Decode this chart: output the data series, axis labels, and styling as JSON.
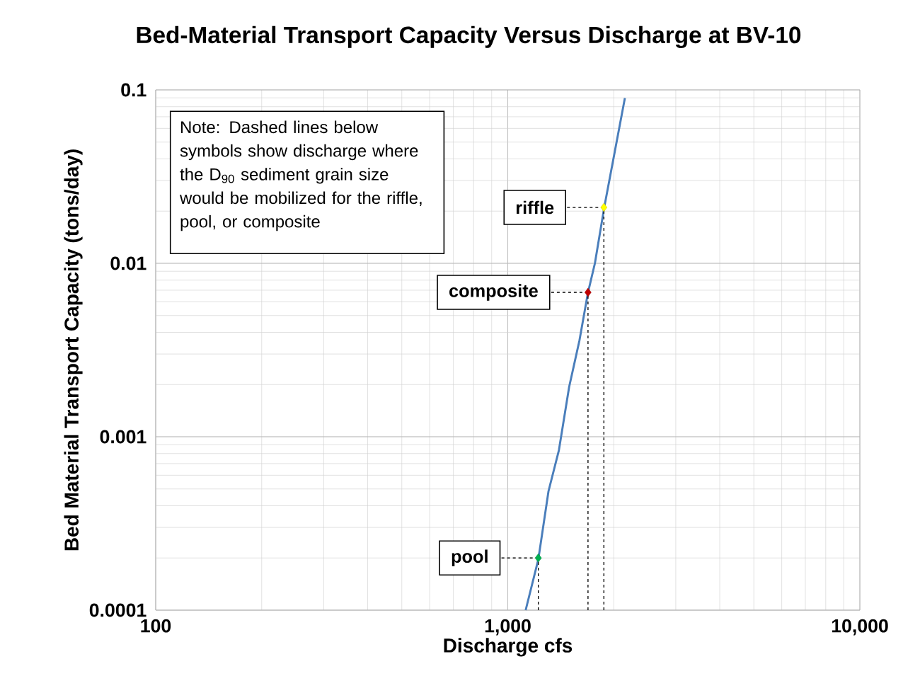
{
  "chart_data": {
    "type": "line",
    "title": "Bed-Material Transport Capacity Versus Discharge at BV-10",
    "xlabel": "Discharge cfs",
    "ylabel": "Bed Material Transport Capacity  (tons/day)",
    "log": "xy",
    "grid": true,
    "line_style": "solid",
    "marker": "none",
    "xlim": [
      100,
      10000
    ],
    "ylim": [
      0.0001,
      0.1
    ],
    "xticks": [
      100,
      {
        "value": 1000,
        "label": "1,000"
      },
      {
        "value": 10000,
        "label": "10,000"
      }
    ],
    "yticks": [
      0.0001,
      0.001,
      0.01,
      0.1
    ],
    "series": [
      {
        "color": "#4a7ebb",
        "x": [
          1124,
          1221,
          1305,
          1397,
          1494,
          1598,
          1690,
          1768,
          1881,
          2151
        ],
        "values": [
          0.0001,
          0.000196,
          0.000485,
          0.000836,
          0.00194,
          0.00359,
          0.0068,
          0.01,
          0.0212,
          0.0898
        ]
      },
      {
        "line_style": "dashed",
        "color": "#000000",
        "x": [
          1875,
          1875
        ],
        "values": [
          0.0001,
          0.021
        ]
      },
      {
        "line_style": "dashed",
        "color": "#000000",
        "x": [
          1690,
          1690
        ],
        "values": [
          0.0001,
          0.0068
        ]
      },
      {
        "line_style": "dashed",
        "color": "#000000",
        "x": [
          1221,
          1221
        ],
        "values": [
          0.0001,
          0.0002
        ]
      },
      {
        "type": "scatter",
        "marker": "diamond",
        "color": "#ffff00",
        "x": [
          1875
        ],
        "values": [
          0.021
        ]
      },
      {
        "type": "scatter",
        "marker": "diamond",
        "color": "#c00000",
        "x": [
          1690
        ],
        "values": [
          0.0068
        ]
      },
      {
        "type": "scatter",
        "marker": "diamond",
        "color": "#00b050",
        "x": [
          1221
        ],
        "values": [
          0.0002
        ]
      }
    ],
    "annotations": [
      "Note:  Dashed lines below symbols show discharge where the D$_{90}$ sediment grain size would be mobilized for  the riffle, pool, or composite",
      {
        "text": "riffle",
        "x": 1875,
        "y": 0.021
      },
      {
        "text": "composite",
        "x": 1690,
        "y": 0.0068
      },
      {
        "text": "pool",
        "x": 1221,
        "y": 0.0002
      }
    ]
  }
}
